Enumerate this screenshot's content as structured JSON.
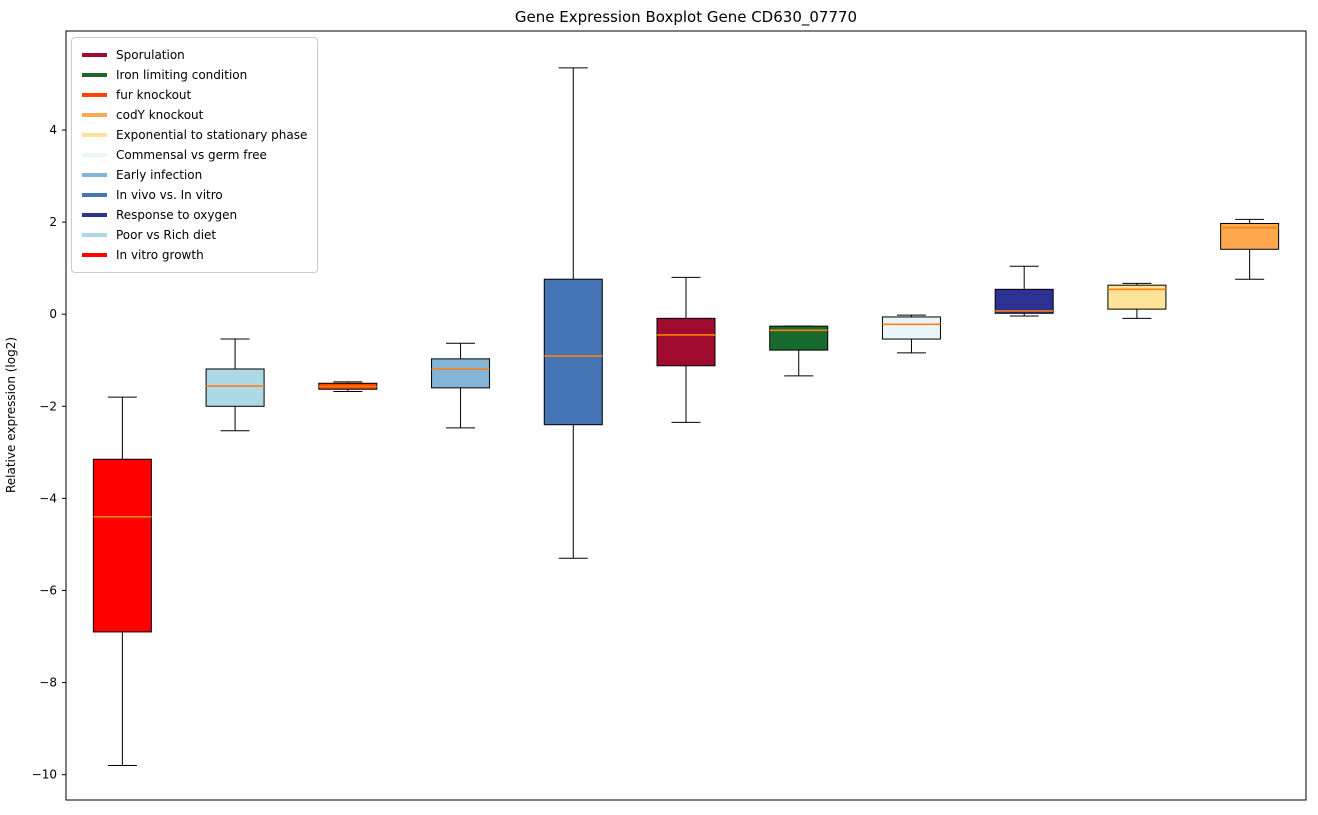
{
  "chart_data": {
    "type": "boxplot",
    "title": "Gene Expression Boxplot Gene CD630_07770",
    "ylabel": "Relative expression (log2)",
    "ylim": [
      -10.55,
      6.15
    ],
    "yticks": [
      -10,
      -8,
      -6,
      -4,
      -2,
      0,
      2,
      4
    ],
    "grid": false,
    "legend_position": "upper left",
    "median_color": "#ff7f0e",
    "box_edge_color": "#000000",
    "boxes": [
      {
        "name": "In vitro growth",
        "color": "#ff0000",
        "whislo": -9.8,
        "q1": -6.9,
        "med": -4.4,
        "q3": -3.15,
        "whishi": -1.8
      },
      {
        "name": "Poor vs Rich diet",
        "color": "#add8e6",
        "whislo": -2.53,
        "q1": -2.0,
        "med": -1.56,
        "q3": -1.19,
        "whishi": -0.54
      },
      {
        "name": "fur knockout",
        "color": "#ff4500",
        "whislo": -1.68,
        "q1": -1.63,
        "med": -1.57,
        "q3": -1.5,
        "whishi": -1.47
      },
      {
        "name": "Early infection",
        "color": "#84b5d8",
        "whislo": -2.47,
        "q1": -1.6,
        "med": -1.19,
        "q3": -0.97,
        "whishi": -0.63
      },
      {
        "name": "In vivo vs. In vitro",
        "color": "#4575b4",
        "whislo": -5.3,
        "q1": -2.4,
        "med": -0.91,
        "q3": 0.76,
        "whishi": 5.35
      },
      {
        "name": "Sporulation",
        "color": "#a00c30",
        "whislo": -2.35,
        "q1": -1.12,
        "med": -0.45,
        "q3": -0.09,
        "whishi": 0.8
      },
      {
        "name": "Iron limiting condition",
        "color": "#186a2f",
        "whislo": -1.34,
        "q1": -0.78,
        "med": -0.35,
        "q3": -0.26,
        "whishi": -0.26
      },
      {
        "name": "Commensal vs germ free",
        "color": "#e9f4fb",
        "whislo": -0.84,
        "q1": -0.54,
        "med": -0.22,
        "q3": -0.06,
        "whishi": -0.02
      },
      {
        "name": "Response to oxygen",
        "color": "#2d3193",
        "whislo": -0.04,
        "q1": 0.02,
        "med": 0.07,
        "q3": 0.54,
        "whishi": 1.04
      },
      {
        "name": "Exponential to stationary phase",
        "color": "#ffe39b",
        "whislo": -0.09,
        "q1": 0.11,
        "med": 0.54,
        "q3": 0.63,
        "whishi": 0.67
      },
      {
        "name": "codY knockout",
        "color": "#ffa850",
        "whislo": 0.76,
        "q1": 1.41,
        "med": 1.88,
        "q3": 1.97,
        "whishi": 2.06
      }
    ],
    "legend": [
      {
        "label": "Sporulation",
        "color": "#a00c30"
      },
      {
        "label": "Iron limiting condition",
        "color": "#186a2f"
      },
      {
        "label": "fur knockout",
        "color": "#ff4500"
      },
      {
        "label": "codY knockout",
        "color": "#ffa850"
      },
      {
        "label": "Exponential to stationary phase",
        "color": "#ffe39b"
      },
      {
        "label": "Commensal vs germ free",
        "color": "#e9f4fb"
      },
      {
        "label": "Early infection",
        "color": "#84b5d8"
      },
      {
        "label": "In vivo vs. In vitro",
        "color": "#4575b4"
      },
      {
        "label": "Response to oxygen",
        "color": "#2d3193"
      },
      {
        "label": "Poor vs Rich diet",
        "color": "#add8e6"
      },
      {
        "label": "In vitro growth",
        "color": "#ff0000"
      }
    ]
  }
}
